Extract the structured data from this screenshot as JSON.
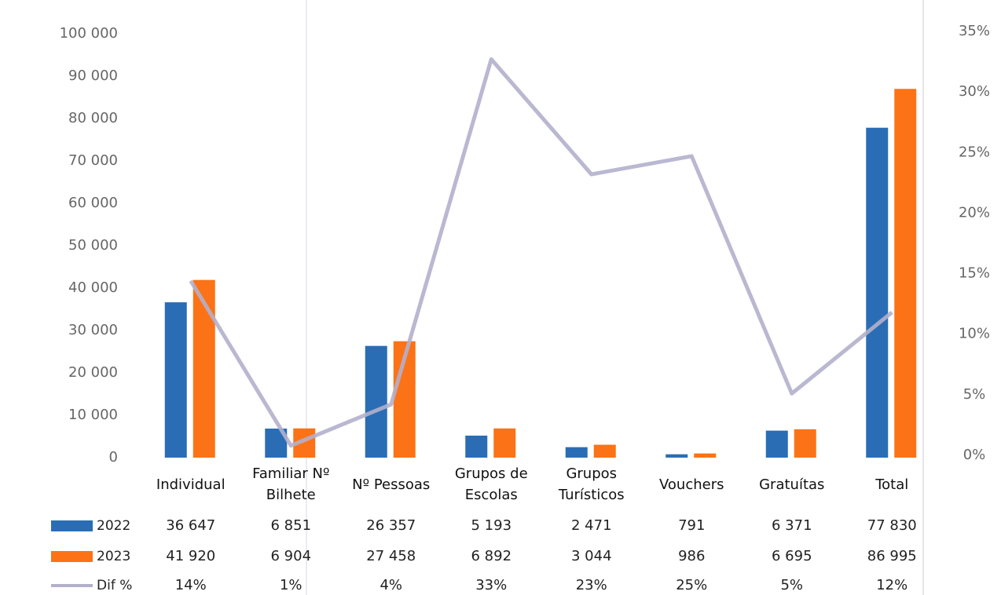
{
  "chart_data": {
    "type": "bar",
    "categories": [
      "Individual",
      "Familiar Nº Bilhete",
      "Nº Pessoas",
      "Grupos de Escolas",
      "Grupos Turísticos",
      "Vouchers",
      "Gratuítas",
      "Total"
    ],
    "series": [
      {
        "name": "2022",
        "color": "#2a6db5",
        "values": [
          36647,
          6851,
          26357,
          5193,
          2471,
          791,
          6371,
          77830
        ],
        "value_labels": [
          "36 647",
          "6 851",
          "26 357",
          "5 193",
          "2 471",
          "791",
          "6 371",
          "77 830"
        ]
      },
      {
        "name": "2023",
        "color": "#fb7316",
        "values": [
          41920,
          6904,
          27458,
          6892,
          3044,
          986,
          6695,
          86995
        ],
        "value_labels": [
          "41 920",
          "6 904",
          "27 458",
          "6 892",
          "3 044",
          "986",
          "6 695",
          "86 995"
        ]
      },
      {
        "name": "Dif %",
        "type": "line",
        "axis": "y2",
        "color": "#b3b0cc",
        "values": [
          14.4,
          0.8,
          4.2,
          32.7,
          23.2,
          24.7,
          5.1,
          11.8
        ],
        "value_labels": [
          "14%",
          "1%",
          "4%",
          "33%",
          "23%",
          "25%",
          "5%",
          "12%"
        ]
      }
    ],
    "ylim": [
      0,
      100000
    ],
    "yticks": [
      0,
      {
        "value": 10000,
        "label": "10 000"
      },
      {
        "value": 20000,
        "label": "20 000"
      },
      {
        "value": 30000,
        "label": "30 000"
      },
      {
        "value": 40000,
        "label": "40 000"
      },
      {
        "value": 50000,
        "label": "50 000"
      },
      {
        "value": 60000,
        "label": "60 000"
      },
      {
        "value": 70000,
        "label": "70 000"
      },
      {
        "value": 80000,
        "label": "80 000"
      },
      {
        "value": 90000,
        "label": "90 000"
      },
      {
        "value": 100000,
        "label": "100 000"
      }
    ],
    "y2lim": [
      0,
      35
    ],
    "y2ticks": [
      {
        "value": 0,
        "label": "0%"
      },
      {
        "value": 5,
        "label": "5%"
      },
      {
        "value": 10,
        "label": "10%"
      },
      {
        "value": 15,
        "label": "15%"
      },
      {
        "value": 20,
        "label": "20%"
      },
      {
        "value": 25,
        "label": "25%"
      },
      {
        "value": 30,
        "label": "30%"
      },
      {
        "value": 35,
        "label": "35%"
      }
    ]
  }
}
